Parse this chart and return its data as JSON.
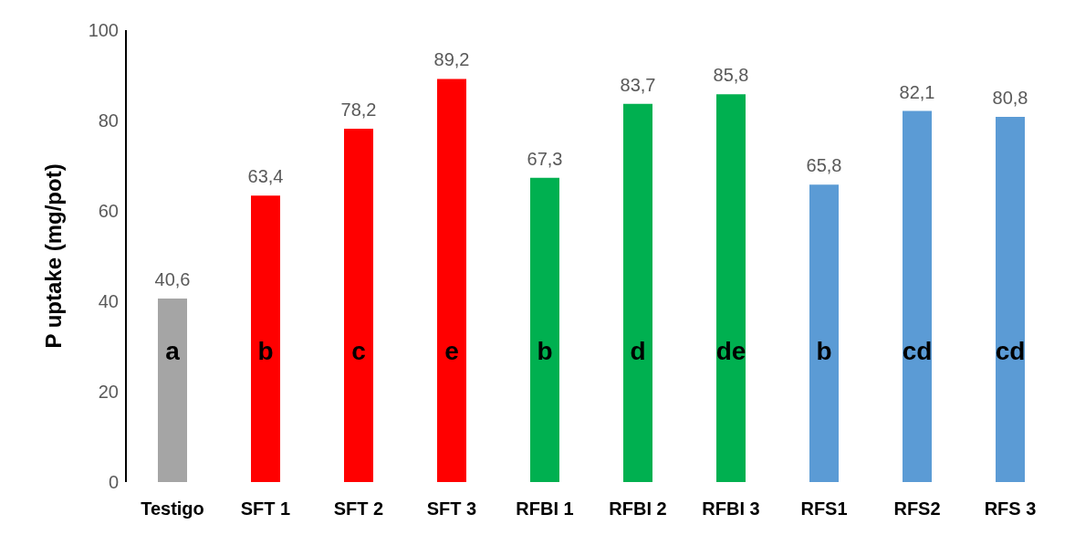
{
  "chart_data": {
    "type": "bar",
    "ylabel": "P uptake (mg/pot)",
    "categories": [
      "Testigo",
      "SFT 1",
      "SFT 2",
      "SFT 3",
      "RFBI 1",
      "RFBI 2",
      "RFBI 3",
      "RFS1",
      "RFS2",
      "RFS 3"
    ],
    "values": [
      40.6,
      63.4,
      78.2,
      89.2,
      67.3,
      83.7,
      85.8,
      65.8,
      82.1,
      80.8
    ],
    "colors": [
      "#a5a5a5",
      "#ff0000",
      "#ff0000",
      "#ff0000",
      "#00b050",
      "#00b050",
      "#00b050",
      "#5b9bd5",
      "#5b9bd5",
      "#5b9bd5"
    ],
    "value_labels": [
      "40,6",
      "63,4",
      "78,2",
      "89,2",
      "67,3",
      "83,7",
      "85,8",
      "65,8",
      "82,1",
      "80,8"
    ],
    "ylim": [
      0,
      100
    ],
    "yticks": [
      0,
      20,
      40,
      60,
      80,
      100
    ],
    "grid": false,
    "legend": false,
    "annotations": [
      "a",
      "b",
      "c",
      "e",
      "b",
      "d",
      "de",
      "b",
      "cd",
      "cd"
    ]
  }
}
